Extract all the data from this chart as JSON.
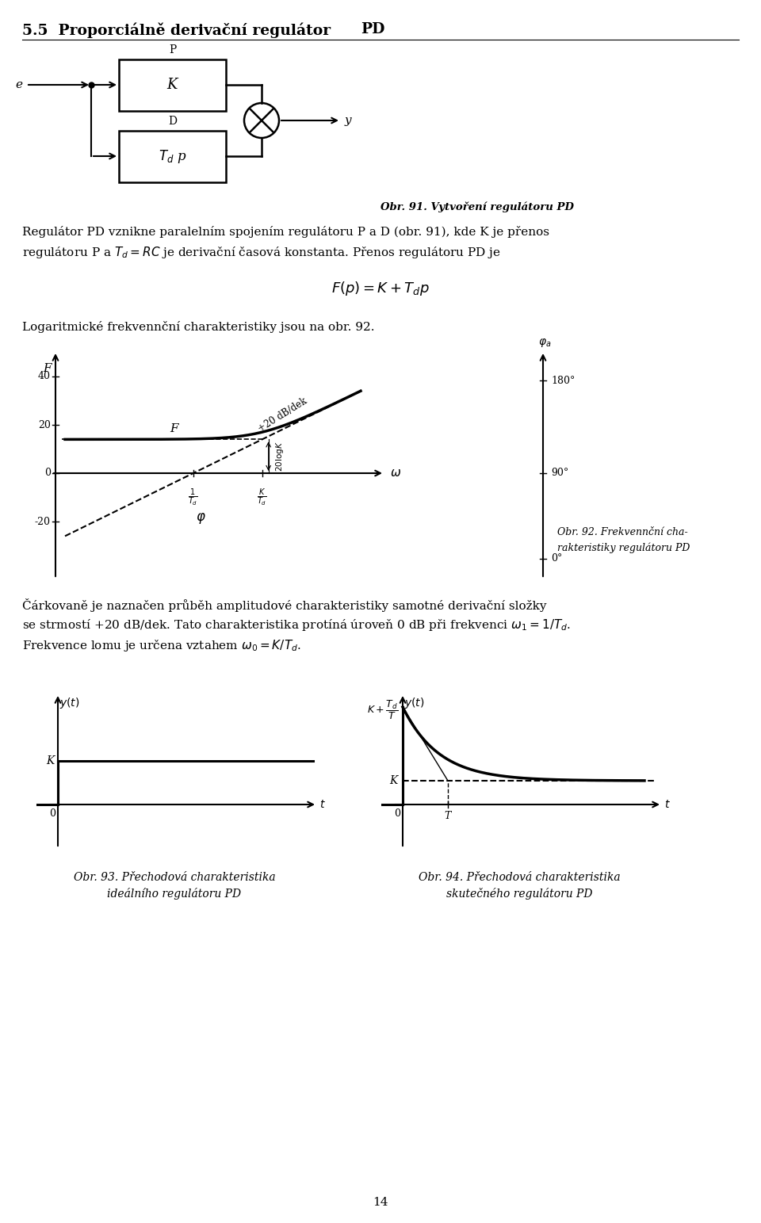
{
  "title_section": "5.5  Proporciálně derivační regulátor",
  "title_right": "PD",
  "body_text1": "Regulátor PD vznikne paralelním spojením regulátoru P a D (obr. 91), kde K je přenos",
  "body_text2": "regulátoru P a $T_d = RC$ je derivační časová konstanta. Přenos regulátoru PD je",
  "formula": "$F(p)=K+T_d p$",
  "body_text3": "Logaritmické frekvennční charakteristiky jsou na obr. 92.",
  "obr91_caption": "Obr. 91. Vytvoření regulátoru PD",
  "obr92_caption_line1": "Obr. 92. Frekvennční cha-",
  "obr92_caption_line2": "rakteristiky regulátoru PD",
  "body_text4": "Čárkovaně je naznačen průběh amplitudové charakteristiky samotné derivační složky",
  "body_text5": "se strmostí +20 dB/dek. Tato charakteristika protíná úroveň 0 dB při frekvenci $\\omega_1 = 1/T_d$.",
  "body_text6": "Frekvence lomu je určena vztahem $\\omega_0 = K/T_d$.",
  "obr93_caption_line1": "Obr. 93. Přechodová charakteristika",
  "obr93_caption_line2": "ideálního regulátoru PD",
  "obr94_caption_line1": "Obr. 94. Přechodová charakteristika",
  "obr94_caption_line2": "skutečného regulátoru PD",
  "page_number": "14",
  "background_color": "#ffffff"
}
